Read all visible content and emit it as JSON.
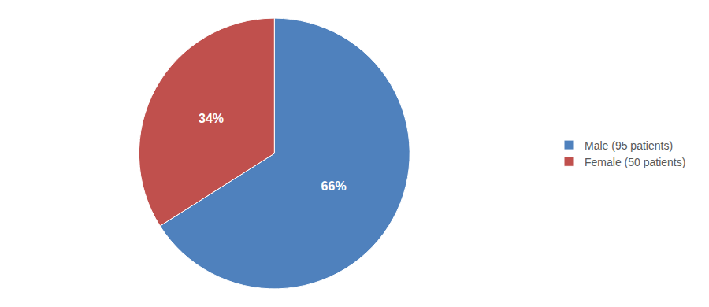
{
  "chart_data": {
    "type": "pie",
    "categories": [
      "Male (95 patients)",
      "Female (50 patients)"
    ],
    "values": [
      66,
      34
    ],
    "value_labels": [
      "66%",
      "34%"
    ],
    "colors": [
      "#4f81bd",
      "#c0504d"
    ],
    "data_labels": true,
    "legend": "right"
  }
}
